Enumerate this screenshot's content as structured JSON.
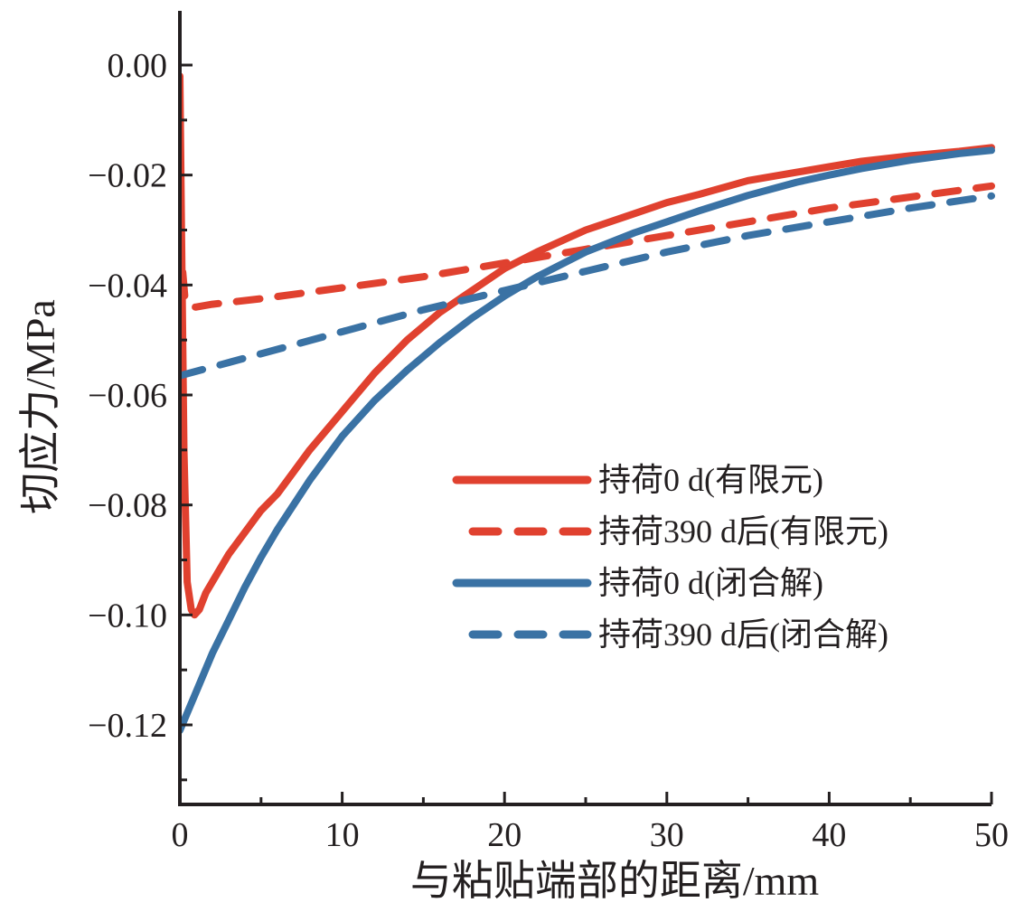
{
  "chart_data": {
    "type": "line",
    "xlabel": "与粘贴端部的距离/mm",
    "ylabel": "切应力/MPa",
    "xlim": [
      0,
      50
    ],
    "ylim": [
      -0.135,
      0.01
    ],
    "x_ticks": [
      0,
      10,
      20,
      30,
      40,
      50
    ],
    "x_tick_labels": [
      "0",
      "10",
      "20",
      "30",
      "40",
      "50"
    ],
    "y_ticks": [
      0.0,
      -0.02,
      -0.04,
      -0.06,
      -0.08,
      -0.1,
      -0.12
    ],
    "y_tick_labels": [
      "0.00",
      "−0.02",
      "−0.04",
      "−0.06",
      "−0.08",
      "−0.10",
      "−0.12"
    ],
    "grid": false,
    "legend_position": "center-right",
    "series": [
      {
        "name": "持荷0 d(有限元)",
        "color": "#e0412f",
        "dash": "solid",
        "x": [
          0,
          0.1,
          0.25,
          0.45,
          0.7,
          0.9,
          1.2,
          1.6,
          2,
          3,
          4,
          5,
          6,
          7,
          8,
          10,
          12,
          14,
          16,
          18,
          20,
          22,
          25,
          28,
          30,
          32,
          35,
          38,
          40,
          42,
          45,
          48,
          50
        ],
        "y": [
          -0.002,
          -0.03,
          -0.07,
          -0.094,
          -0.099,
          -0.1,
          -0.099,
          -0.096,
          -0.094,
          -0.089,
          -0.085,
          -0.081,
          -0.078,
          -0.074,
          -0.07,
          -0.063,
          -0.056,
          -0.05,
          -0.045,
          -0.041,
          -0.037,
          -0.034,
          -0.03,
          -0.027,
          -0.025,
          -0.0235,
          -0.021,
          -0.0195,
          -0.0185,
          -0.0175,
          -0.0165,
          -0.0157,
          -0.015
        ]
      },
      {
        "name": "持荷390 d后(有限元)",
        "color": "#e0412f",
        "dash": "dashed",
        "x": [
          0,
          0.1,
          0.3,
          0.6,
          1,
          2,
          5,
          10,
          15,
          20,
          25,
          30,
          35,
          40,
          45,
          50
        ],
        "y": [
          -0.015,
          -0.035,
          -0.042,
          -0.044,
          -0.044,
          -0.0435,
          -0.0425,
          -0.0405,
          -0.0385,
          -0.036,
          -0.0335,
          -0.031,
          -0.0285,
          -0.026,
          -0.024,
          -0.022
        ]
      },
      {
        "name": "持荷0 d(闭合解)",
        "color": "#3a72a4",
        "dash": "solid",
        "x": [
          0,
          1,
          2,
          3,
          4,
          5,
          6,
          8,
          10,
          12,
          14,
          16,
          18,
          20,
          22,
          25,
          28,
          30,
          32,
          35,
          38,
          40,
          42,
          45,
          48,
          50
        ],
        "y": [
          -0.121,
          -0.114,
          -0.107,
          -0.101,
          -0.095,
          -0.0895,
          -0.0845,
          -0.0755,
          -0.0675,
          -0.061,
          -0.0555,
          -0.0505,
          -0.046,
          -0.042,
          -0.0385,
          -0.034,
          -0.0305,
          -0.0285,
          -0.0265,
          -0.0237,
          -0.0213,
          -0.02,
          -0.0188,
          -0.0173,
          -0.0161,
          -0.0155
        ]
      },
      {
        "name": "持荷390 d后(闭合解)",
        "color": "#3a72a4",
        "dash": "dashed",
        "x": [
          0,
          5,
          10,
          15,
          20,
          25,
          30,
          35,
          40,
          45,
          50
        ],
        "y": [
          -0.0565,
          -0.0525,
          -0.0485,
          -0.0445,
          -0.041,
          -0.0375,
          -0.034,
          -0.031,
          -0.0285,
          -0.026,
          -0.0238
        ]
      }
    ]
  }
}
